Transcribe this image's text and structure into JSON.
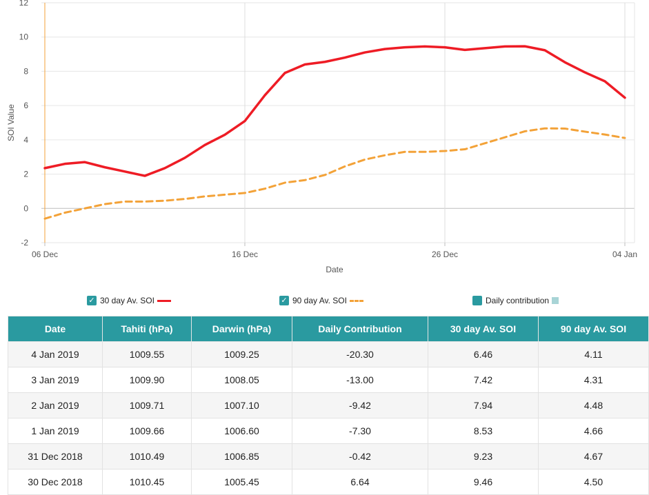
{
  "chart_data": {
    "type": "line",
    "xlabel": "Date",
    "ylabel": "SOI Value",
    "x_ticks": [
      "06 Dec",
      "16 Dec",
      "26 Dec",
      "04 Jan"
    ],
    "y_ticks": [
      "-2",
      "0",
      "2",
      "4",
      "6",
      "8",
      "10",
      "12"
    ],
    "ylim": [
      -2,
      12
    ],
    "x": [
      "2018-12-06",
      "2018-12-07",
      "2018-12-08",
      "2018-12-09",
      "2018-12-10",
      "2018-12-11",
      "2018-12-12",
      "2018-12-13",
      "2018-12-14",
      "2018-12-15",
      "2018-12-16",
      "2018-12-17",
      "2018-12-18",
      "2018-12-19",
      "2018-12-20",
      "2018-12-21",
      "2018-12-22",
      "2018-12-23",
      "2018-12-24",
      "2018-12-25",
      "2018-12-26",
      "2018-12-27",
      "2018-12-28",
      "2018-12-29",
      "2018-12-30",
      "2018-12-31",
      "2019-01-01",
      "2019-01-02",
      "2019-01-03",
      "2019-01-04"
    ],
    "series": [
      {
        "name": "30 day Av. SOI",
        "color": "#ee1c25",
        "style": "solid",
        "values": [
          2.35,
          2.6,
          2.7,
          2.4,
          2.15,
          1.9,
          2.35,
          2.95,
          3.7,
          4.3,
          5.1,
          6.6,
          7.9,
          8.4,
          8.55,
          8.8,
          9.1,
          9.3,
          9.4,
          9.45,
          9.4,
          9.25,
          9.35,
          9.45,
          9.46,
          9.23,
          8.53,
          7.94,
          7.42,
          6.46
        ]
      },
      {
        "name": "90 day Av. SOI",
        "color": "#f3a238",
        "style": "dashed",
        "values": [
          -0.6,
          -0.25,
          0.0,
          0.25,
          0.4,
          0.4,
          0.45,
          0.55,
          0.7,
          0.8,
          0.9,
          1.15,
          1.5,
          1.65,
          1.95,
          2.45,
          2.85,
          3.1,
          3.3,
          3.3,
          3.35,
          3.45,
          3.8,
          4.15,
          4.5,
          4.67,
          4.66,
          4.48,
          4.31,
          4.11
        ]
      }
    ],
    "grid": true
  },
  "legend": {
    "soi30_label": "30 day Av. SOI",
    "soi90_label": "90 day Av. SOI",
    "daily_label": "Daily contribution",
    "check_glyph": "✓",
    "daily_swatch_color": "#a8d4d6"
  },
  "table": {
    "headers": {
      "date": "Date",
      "tahiti": "Tahiti (hPa)",
      "darwin": "Darwin (hPa)",
      "daily": "Daily Contribution",
      "soi30": "30 day Av. SOI",
      "soi90": "90 day Av. SOI"
    },
    "rows": [
      {
        "date": "4 Jan 2019",
        "tahiti": "1009.55",
        "darwin": "1009.25",
        "daily": "-20.30",
        "soi30": "6.46",
        "soi90": "4.11"
      },
      {
        "date": "3 Jan 2019",
        "tahiti": "1009.90",
        "darwin": "1008.05",
        "daily": "-13.00",
        "soi30": "7.42",
        "soi90": "4.31"
      },
      {
        "date": "2 Jan 2019",
        "tahiti": "1009.71",
        "darwin": "1007.10",
        "daily": "-9.42",
        "soi30": "7.94",
        "soi90": "4.48"
      },
      {
        "date": "1 Jan 2019",
        "tahiti": "1009.66",
        "darwin": "1006.60",
        "daily": "-7.30",
        "soi30": "8.53",
        "soi90": "4.66"
      },
      {
        "date": "31 Dec 2018",
        "tahiti": "1010.49",
        "darwin": "1006.85",
        "daily": "-0.42",
        "soi30": "9.23",
        "soi90": "4.67"
      },
      {
        "date": "30 Dec 2018",
        "tahiti": "1010.45",
        "darwin": "1005.45",
        "daily": "6.64",
        "soi30": "9.46",
        "soi90": "4.50"
      }
    ]
  }
}
